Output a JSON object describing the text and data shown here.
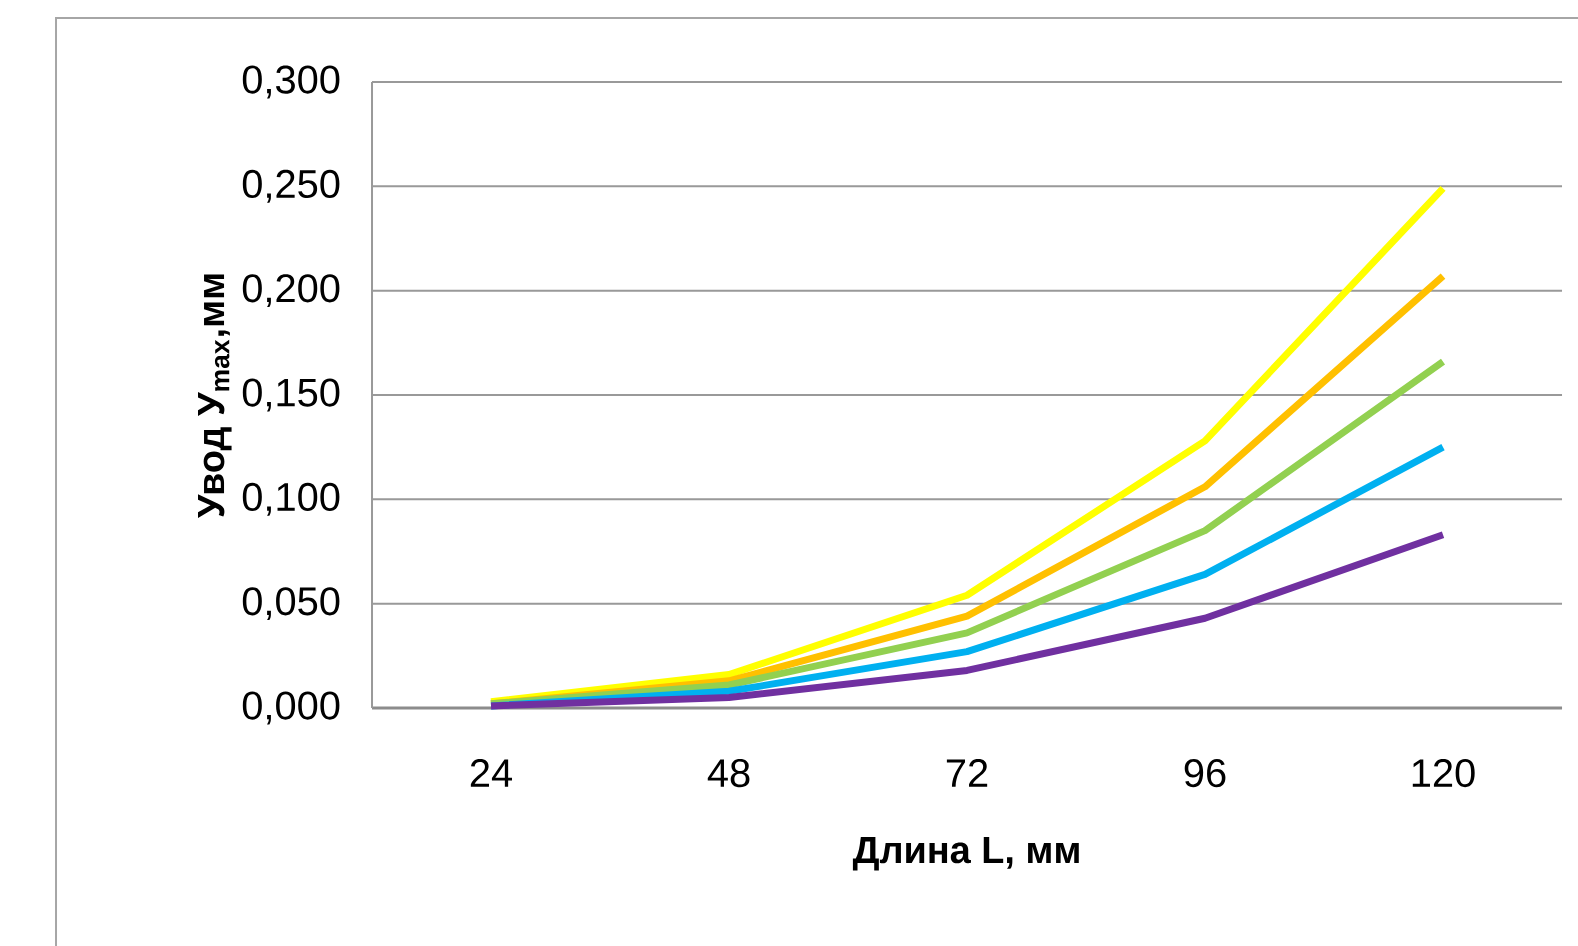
{
  "chart_data": {
    "type": "line",
    "xlabel": "Длина L, мм",
    "ylabel": "Увод У$_{max}$,мм",
    "categories": [
      "24",
      "48",
      "72",
      "96",
      "120"
    ],
    "series": [
      {
        "color": "#ffff00",
        "values": [
          0.003,
          0.016,
          0.054,
          0.128,
          0.249
        ]
      },
      {
        "color": "#ffc000",
        "values": [
          0.002,
          0.013,
          0.044,
          0.106,
          0.207
        ]
      },
      {
        "color": "#92d050",
        "values": [
          0.002,
          0.011,
          0.036,
          0.085,
          0.166
        ]
      },
      {
        "color": "#00b0f0",
        "values": [
          0.001,
          0.008,
          0.027,
          0.064,
          0.125
        ]
      },
      {
        "color": "#7030a0",
        "values": [
          0.001,
          0.005,
          0.018,
          0.043,
          0.083
        ]
      }
    ],
    "ylim": [
      0,
      0.3
    ],
    "yticks": [
      {
        "value": 0,
        "label": "0,000"
      },
      {
        "value": 0.05,
        "label": "0,050"
      },
      {
        "value": 0.1,
        "label": "0,100"
      },
      {
        "value": 0.15,
        "label": "0,150"
      },
      {
        "value": 0.2,
        "label": "0,200"
      },
      {
        "value": 0.25,
        "label": "0,250"
      },
      {
        "value": 0.3,
        "label": "0,300"
      }
    ],
    "grid": "y",
    "marker": "none",
    "line_style": "solid"
  }
}
